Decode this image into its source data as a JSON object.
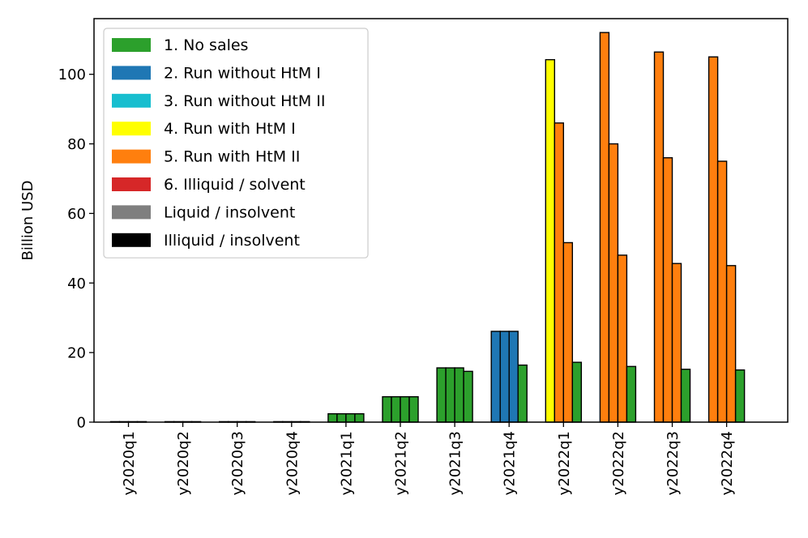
{
  "chart_data": {
    "type": "bar",
    "ylabel": "Billion USD",
    "xlabel": "",
    "ylim": [
      0,
      116
    ],
    "yticks": [
      0,
      20,
      40,
      60,
      80,
      100
    ],
    "grid": false,
    "legend_position": "top-left",
    "categories": [
      "y2020q1",
      "y2020q2",
      "y2020q3",
      "y2020q4",
      "y2021q1",
      "y2021q2",
      "y2021q3",
      "y2021q4",
      "y2022q1",
      "y2022q2",
      "y2022q3",
      "y2022q4"
    ],
    "legend": [
      {
        "key": "no_sales",
        "label": "1. No sales",
        "color": "#2ca02c"
      },
      {
        "key": "run_wo_htm1",
        "label": "2. Run without HtM I",
        "color": "#1f77b4"
      },
      {
        "key": "run_wo_htm2",
        "label": "3. Run without HtM II",
        "color": "#17becf"
      },
      {
        "key": "run_htm1",
        "label": "4. Run with HtM I",
        "color": "#ffff00"
      },
      {
        "key": "run_htm2",
        "label": "5. Run with HtM II",
        "color": "#ff7f0e"
      },
      {
        "key": "illiquid_solvent",
        "label": "6. Illiquid / solvent",
        "color": "#d62728"
      },
      {
        "key": "liquid_insolvent",
        "label": "Liquid / insolvent",
        "color": "#7f7f7f"
      },
      {
        "key": "illiquid_insolvent",
        "label": "Illiquid / insolvent",
        "color": "#000000"
      }
    ],
    "groups": [
      {
        "category": "y2020q1",
        "bars": [
          {
            "value": 0,
            "state": "no_sales"
          },
          {
            "value": 0,
            "state": "no_sales"
          },
          {
            "value": 0,
            "state": "no_sales"
          },
          {
            "value": 0,
            "state": "no_sales"
          }
        ]
      },
      {
        "category": "y2020q2",
        "bars": [
          {
            "value": 0,
            "state": "no_sales"
          },
          {
            "value": 0,
            "state": "no_sales"
          },
          {
            "value": 0,
            "state": "no_sales"
          },
          {
            "value": 0,
            "state": "no_sales"
          }
        ]
      },
      {
        "category": "y2020q3",
        "bars": [
          {
            "value": 0,
            "state": "no_sales"
          },
          {
            "value": 0,
            "state": "no_sales"
          },
          {
            "value": 0,
            "state": "no_sales"
          },
          {
            "value": 0,
            "state": "no_sales"
          }
        ]
      },
      {
        "category": "y2020q4",
        "bars": [
          {
            "value": 0,
            "state": "no_sales"
          },
          {
            "value": 0,
            "state": "no_sales"
          },
          {
            "value": 0,
            "state": "no_sales"
          },
          {
            "value": 0,
            "state": "no_sales"
          }
        ]
      },
      {
        "category": "y2021q1",
        "bars": [
          {
            "value": 2.4,
            "state": "no_sales"
          },
          {
            "value": 2.4,
            "state": "no_sales"
          },
          {
            "value": 2.4,
            "state": "no_sales"
          },
          {
            "value": 2.4,
            "state": "no_sales"
          }
        ]
      },
      {
        "category": "y2021q2",
        "bars": [
          {
            "value": 7.3,
            "state": "no_sales"
          },
          {
            "value": 7.3,
            "state": "no_sales"
          },
          {
            "value": 7.3,
            "state": "no_sales"
          },
          {
            "value": 7.3,
            "state": "no_sales"
          }
        ]
      },
      {
        "category": "y2021q3",
        "bars": [
          {
            "value": 15.6,
            "state": "no_sales"
          },
          {
            "value": 15.6,
            "state": "no_sales"
          },
          {
            "value": 15.6,
            "state": "no_sales"
          },
          {
            "value": 14.6,
            "state": "no_sales"
          }
        ]
      },
      {
        "category": "y2021q4",
        "bars": [
          {
            "value": 26.1,
            "state": "run_wo_htm1"
          },
          {
            "value": 26.1,
            "state": "run_wo_htm1"
          },
          {
            "value": 26.1,
            "state": "run_wo_htm1"
          },
          {
            "value": 16.4,
            "state": "no_sales"
          }
        ]
      },
      {
        "category": "y2022q1",
        "bars": [
          {
            "value": 104.2,
            "state": "run_htm1"
          },
          {
            "value": 86.0,
            "state": "run_htm2"
          },
          {
            "value": 51.6,
            "state": "run_htm2"
          },
          {
            "value": 17.2,
            "state": "no_sales"
          }
        ]
      },
      {
        "category": "y2022q2",
        "bars": [
          {
            "value": 112.0,
            "state": "run_htm2"
          },
          {
            "value": 80.0,
            "state": "run_htm2"
          },
          {
            "value": 48.0,
            "state": "run_htm2"
          },
          {
            "value": 16.0,
            "state": "no_sales"
          }
        ]
      },
      {
        "category": "y2022q3",
        "bars": [
          {
            "value": 106.4,
            "state": "run_htm2"
          },
          {
            "value": 76.0,
            "state": "run_htm2"
          },
          {
            "value": 45.6,
            "state": "run_htm2"
          },
          {
            "value": 15.2,
            "state": "no_sales"
          }
        ]
      },
      {
        "category": "y2022q4",
        "bars": [
          {
            "value": 105.0,
            "state": "run_htm2"
          },
          {
            "value": 75.0,
            "state": "run_htm2"
          },
          {
            "value": 45.0,
            "state": "run_htm2"
          },
          {
            "value": 15.0,
            "state": "no_sales"
          }
        ]
      }
    ]
  }
}
